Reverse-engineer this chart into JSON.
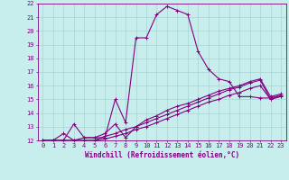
{
  "xlabel": "Windchill (Refroidissement éolien,°C)",
  "background_color": "#c8eded",
  "line_color": "#800080",
  "grid_color": "#a8d4d4",
  "xlim": [
    -0.5,
    23.5
  ],
  "ylim": [
    12,
    22
  ],
  "xticks": [
    0,
    1,
    2,
    3,
    4,
    5,
    6,
    7,
    8,
    9,
    10,
    11,
    12,
    13,
    14,
    15,
    16,
    17,
    18,
    19,
    20,
    21,
    22,
    23
  ],
  "yticks": [
    12,
    13,
    14,
    15,
    16,
    17,
    18,
    19,
    20,
    21,
    22
  ],
  "lines": [
    {
      "x": [
        0,
        1,
        2,
        3,
        4,
        5,
        6,
        7,
        8,
        9,
        10,
        11,
        12,
        13,
        14,
        15,
        16,
        17,
        18,
        19,
        20,
        21,
        22,
        23
      ],
      "y": [
        12,
        12,
        12,
        13.2,
        12.2,
        12.2,
        12.2,
        15.0,
        13.3,
        19.5,
        19.5,
        21.2,
        21.8,
        21.5,
        21.2,
        18.5,
        17.2,
        16.5,
        16.3,
        15.2,
        15.2,
        15.1,
        15.1,
        15.3
      ]
    },
    {
      "x": [
        0,
        1,
        2,
        3,
        4,
        5,
        6,
        7,
        8,
        9,
        10,
        11,
        12,
        13,
        14,
        15,
        16,
        17,
        18,
        19,
        20,
        21,
        22,
        23
      ],
      "y": [
        12,
        12,
        12.5,
        12.0,
        12.2,
        12.2,
        12.5,
        13.2,
        12.2,
        13.0,
        13.5,
        13.8,
        14.2,
        14.5,
        14.7,
        15.0,
        15.3,
        15.6,
        15.8,
        16.0,
        16.3,
        16.5,
        15.2,
        15.4
      ]
    },
    {
      "x": [
        0,
        1,
        2,
        3,
        4,
        5,
        6,
        7,
        8,
        9,
        10,
        11,
        12,
        13,
        14,
        15,
        16,
        17,
        18,
        19,
        20,
        21,
        22,
        23
      ],
      "y": [
        12,
        12,
        12,
        12,
        12,
        12,
        12.3,
        12.5,
        12.8,
        13.0,
        13.3,
        13.6,
        13.9,
        14.2,
        14.5,
        14.8,
        15.1,
        15.4,
        15.7,
        15.9,
        16.2,
        16.4,
        15.0,
        15.3
      ]
    },
    {
      "x": [
        0,
        1,
        2,
        3,
        4,
        5,
        6,
        7,
        8,
        9,
        10,
        11,
        12,
        13,
        14,
        15,
        16,
        17,
        18,
        19,
        20,
        21,
        22,
        23
      ],
      "y": [
        12,
        12,
        12,
        12,
        12,
        12,
        12.1,
        12.3,
        12.5,
        12.8,
        13.0,
        13.3,
        13.6,
        13.9,
        14.2,
        14.5,
        14.8,
        15.0,
        15.3,
        15.5,
        15.8,
        16.0,
        15.0,
        15.2
      ]
    }
  ],
  "marker": "+",
  "markersize": 3,
  "linewidth": 0.8,
  "tick_fontsize": 5,
  "label_fontsize": 5.5,
  "tick_color": "#800080",
  "axis_color": "#800080",
  "label_color": "#800080"
}
